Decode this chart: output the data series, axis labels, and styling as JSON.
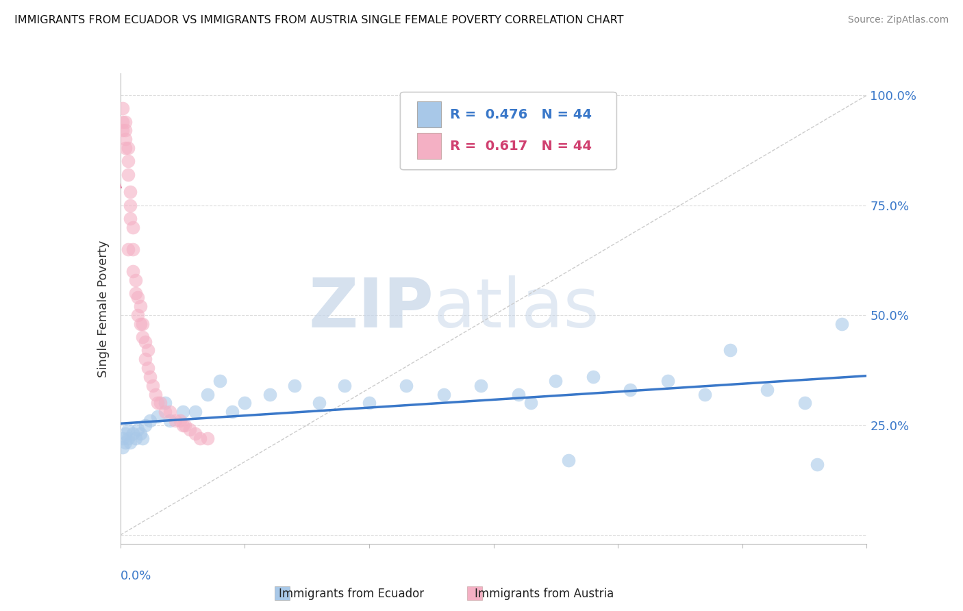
{
  "title": "IMMIGRANTS FROM ECUADOR VS IMMIGRANTS FROM AUSTRIA SINGLE FEMALE POVERTY CORRELATION CHART",
  "source": "Source: ZipAtlas.com",
  "ylabel": "Single Female Poverty",
  "ylabel_right_ticks": [
    "100.0%",
    "75.0%",
    "50.0%",
    "25.0%"
  ],
  "ylabel_right_vals": [
    1.0,
    0.75,
    0.5,
    0.25
  ],
  "legend_ecuador": "Immigrants from Ecuador",
  "legend_austria": "Immigrants from Austria",
  "r_ecuador": "0.476",
  "n_ecuador": "44",
  "r_austria": "0.617",
  "n_austria": "44",
  "color_ecuador": "#a8c8e8",
  "color_austria": "#f4b0c4",
  "line_color_ecuador": "#3a78c9",
  "line_color_austria": "#d04070",
  "trendline_dashed_color": "#cccccc",
  "background_color": "#ffffff",
  "xlim": [
    0.0,
    0.3
  ],
  "ylim": [
    -0.02,
    1.05
  ],
  "ecuador_x": [
    0.001,
    0.001,
    0.002,
    0.002,
    0.003,
    0.003,
    0.004,
    0.005,
    0.006,
    0.007,
    0.008,
    0.009,
    0.01,
    0.012,
    0.015,
    0.018,
    0.02,
    0.025,
    0.03,
    0.035,
    0.04,
    0.045,
    0.05,
    0.06,
    0.07,
    0.08,
    0.09,
    0.1,
    0.115,
    0.13,
    0.145,
    0.16,
    0.175,
    0.19,
    0.205,
    0.22,
    0.235,
    0.245,
    0.26,
    0.275,
    0.28,
    0.18,
    0.165,
    0.29
  ],
  "ecuador_y": [
    0.2,
    0.22,
    0.21,
    0.23,
    0.22,
    0.24,
    0.21,
    0.23,
    0.22,
    0.24,
    0.23,
    0.22,
    0.25,
    0.26,
    0.27,
    0.3,
    0.26,
    0.28,
    0.28,
    0.32,
    0.35,
    0.28,
    0.3,
    0.32,
    0.34,
    0.3,
    0.34,
    0.3,
    0.34,
    0.32,
    0.34,
    0.32,
    0.35,
    0.36,
    0.33,
    0.35,
    0.32,
    0.42,
    0.33,
    0.3,
    0.16,
    0.17,
    0.3,
    0.48
  ],
  "austria_x": [
    0.001,
    0.001,
    0.001,
    0.002,
    0.002,
    0.002,
    0.002,
    0.003,
    0.003,
    0.003,
    0.003,
    0.004,
    0.004,
    0.004,
    0.005,
    0.005,
    0.005,
    0.006,
    0.006,
    0.007,
    0.007,
    0.008,
    0.008,
    0.009,
    0.009,
    0.01,
    0.01,
    0.011,
    0.011,
    0.012,
    0.013,
    0.014,
    0.015,
    0.016,
    0.018,
    0.02,
    0.022,
    0.024,
    0.025,
    0.026,
    0.028,
    0.03,
    0.032,
    0.035
  ],
  "austria_y": [
    0.92,
    0.94,
    0.97,
    0.88,
    0.9,
    0.92,
    0.94,
    0.82,
    0.85,
    0.88,
    0.65,
    0.72,
    0.75,
    0.78,
    0.6,
    0.65,
    0.7,
    0.55,
    0.58,
    0.5,
    0.54,
    0.48,
    0.52,
    0.45,
    0.48,
    0.4,
    0.44,
    0.38,
    0.42,
    0.36,
    0.34,
    0.32,
    0.3,
    0.3,
    0.28,
    0.28,
    0.26,
    0.26,
    0.25,
    0.25,
    0.24,
    0.23,
    0.22,
    0.22
  ],
  "grid_color": "#dddddd",
  "dot_size": 200,
  "dot_alpha": 0.6
}
